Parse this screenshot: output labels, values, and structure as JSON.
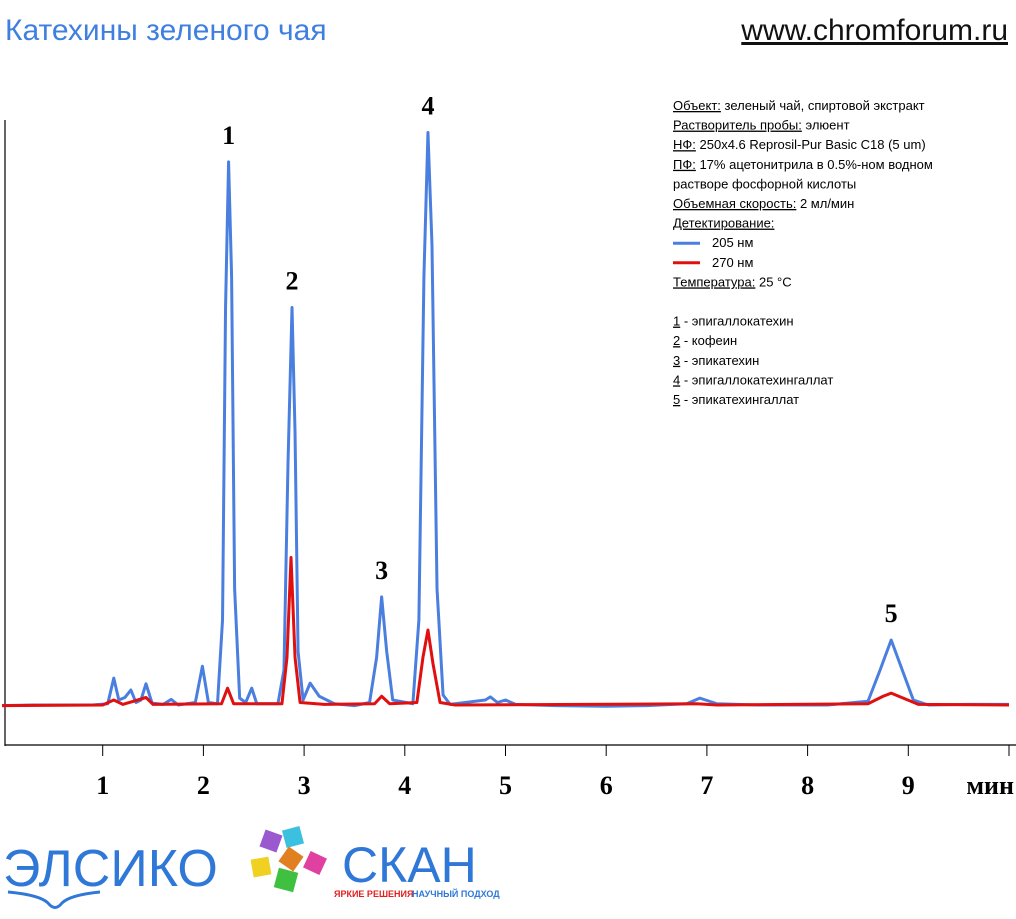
{
  "chart_data": {
    "type": "line",
    "title": "Катехины зеленого чая",
    "site": "www.chromforum.ru",
    "xlabel": "мин",
    "xlim": [
      0,
      10
    ],
    "ylim": [
      0,
      100
    ],
    "xticks": [
      1,
      2,
      3,
      4,
      5,
      6,
      7,
      8,
      9
    ],
    "series": [
      {
        "name": "205 нм",
        "color": "#4a7fe0",
        "x": [
          0.0,
          0.3,
          0.9,
          1.05,
          1.11,
          1.16,
          1.22,
          1.28,
          1.33,
          1.38,
          1.43,
          1.49,
          1.6,
          1.68,
          1.75,
          1.92,
          1.99,
          2.05,
          2.14,
          2.19,
          2.22,
          2.25,
          2.28,
          2.31,
          2.36,
          2.42,
          2.48,
          2.53,
          2.74,
          2.8,
          2.84,
          2.88,
          2.91,
          2.94,
          2.99,
          3.06,
          3.15,
          3.3,
          3.5,
          3.65,
          3.72,
          3.77,
          3.82,
          3.88,
          4.08,
          4.14,
          4.19,
          4.23,
          4.27,
          4.32,
          4.38,
          4.45,
          4.8,
          4.85,
          4.92,
          5.0,
          5.1,
          5.5,
          6.0,
          6.4,
          6.8,
          6.93,
          7.1,
          7.5,
          8.2,
          8.6,
          8.72,
          8.83,
          8.94,
          9.05,
          9.2,
          9.6,
          10.0
        ],
        "values": [
          6.3,
          6.4,
          6.4,
          6.6,
          10.7,
          7.2,
          7.6,
          8.8,
          6.8,
          7.2,
          9.8,
          6.7,
          6.5,
          7.3,
          6.4,
          6.8,
          12.6,
          6.8,
          6.6,
          20,
          70,
          93.3,
          75,
          25,
          7.5,
          6.8,
          9.1,
          6.6,
          6.6,
          12,
          45,
          70,
          50,
          15,
          7.2,
          9.9,
          7.8,
          6.6,
          6.3,
          6.8,
          14,
          23.7,
          15,
          7.2,
          6.6,
          20,
          75,
          98,
          80,
          25,
          8,
          6.5,
          7.2,
          7.7,
          6.8,
          7.2,
          6.5,
          6.3,
          6.2,
          6.3,
          6.6,
          7.5,
          6.6,
          6.4,
          6.4,
          7.0,
          12,
          16.8,
          12,
          7.2,
          6.4,
          6.5,
          6.5
        ]
      },
      {
        "name": "270 нм",
        "color": "#e01010",
        "x": [
          0.0,
          1.0,
          1.11,
          1.2,
          1.43,
          1.5,
          2.18,
          2.24,
          2.3,
          2.78,
          2.83,
          2.87,
          2.91,
          2.96,
          3.2,
          3.7,
          3.77,
          3.85,
          4.12,
          4.18,
          4.23,
          4.28,
          4.35,
          4.5,
          6.9,
          7.1,
          8.6,
          8.75,
          8.83,
          8.95,
          9.1,
          10.0
        ],
        "values": [
          6.3,
          6.4,
          7.2,
          6.5,
          7.6,
          6.5,
          6.6,
          9.1,
          6.6,
          6.6,
          14,
          30,
          14,
          6.8,
          6.5,
          6.6,
          7.8,
          6.6,
          6.8,
          14,
          18.4,
          13,
          6.8,
          6.4,
          6.6,
          6.4,
          6.6,
          7.8,
          8.3,
          7.5,
          6.5,
          6.4
        ]
      }
    ],
    "annotations": [
      {
        "label": "1",
        "x": 2.25
      },
      {
        "label": "2",
        "x": 2.88
      },
      {
        "label": "3",
        "x": 3.77
      },
      {
        "label": "4",
        "x": 4.23
      },
      {
        "label": "5",
        "x": 8.83
      }
    ],
    "info": [
      {
        "key": "Объект:",
        "text": " зеленый чай, спиртовой экстракт"
      },
      {
        "key": "Растворитель пробы:",
        "text": " элюент"
      },
      {
        "key": "НФ:",
        "text": " 250x4.6 Reprosil-Pur Basic C18  (5 um)"
      },
      {
        "key": "ПФ:",
        "text": " 17% ацетонитрила в 0.5%-ном водном"
      },
      {
        "text": "растворе фосфорной кислоты"
      },
      {
        "key": "Объемная скорость:",
        "text": " 2 мл/мин"
      },
      {
        "key": "Детектирование:"
      }
    ],
    "info_after": [
      {
        "key": "Температура:",
        "text": " 25 °C"
      }
    ],
    "compounds": [
      {
        "key": "1",
        "text": " - эпигаллокатехин"
      },
      {
        "key": "2",
        "text": " - кофеин"
      },
      {
        "key": "3",
        "text": " - эпикатехин"
      },
      {
        "key": "4",
        "text": " - эпигаллокатехингаллат"
      },
      {
        "key": "5",
        "text": " - эпикатехингаллат"
      }
    ]
  },
  "logo": {
    "left": "ЭЛСИКО",
    "right": "СКАН",
    "slogan1": "ЯРКИЕ РЕШЕНИЯ",
    "slogan2": "НАУЧНЫЙ ПОДХОД"
  }
}
